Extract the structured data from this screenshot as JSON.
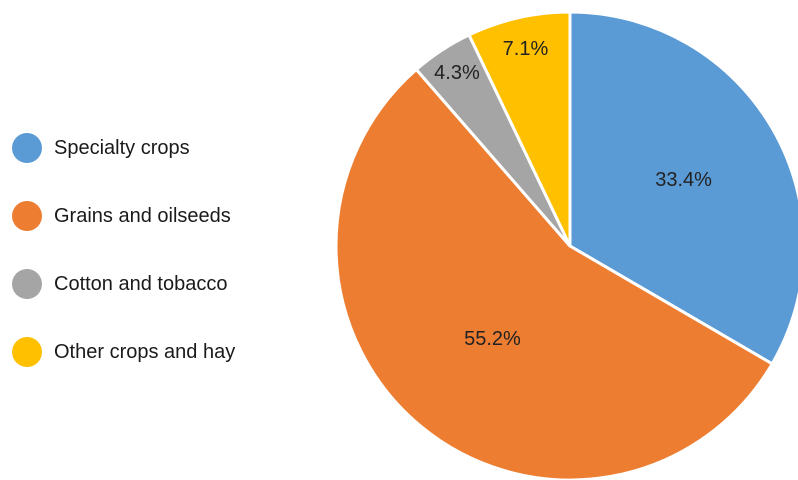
{
  "chart_data": {
    "type": "pie",
    "title": "",
    "start_angle_deg": 0,
    "direction": "clockwise",
    "slices": [
      {
        "name": "Specialty crops",
        "value": 33.4,
        "label": "33.4%",
        "color": "#5B9BD5"
      },
      {
        "name": "Grains and oilseeds",
        "value": 55.2,
        "label": "55.2%",
        "color": "#ED7D31"
      },
      {
        "name": "Cotton and tobacco",
        "value": 4.3,
        "label": "4.3%",
        "color": "#A5A5A5"
      },
      {
        "name": "Other crops and hay",
        "value": 7.1,
        "label": "7.1%",
        "color": "#FFC000"
      }
    ],
    "legend_placement": "left"
  }
}
